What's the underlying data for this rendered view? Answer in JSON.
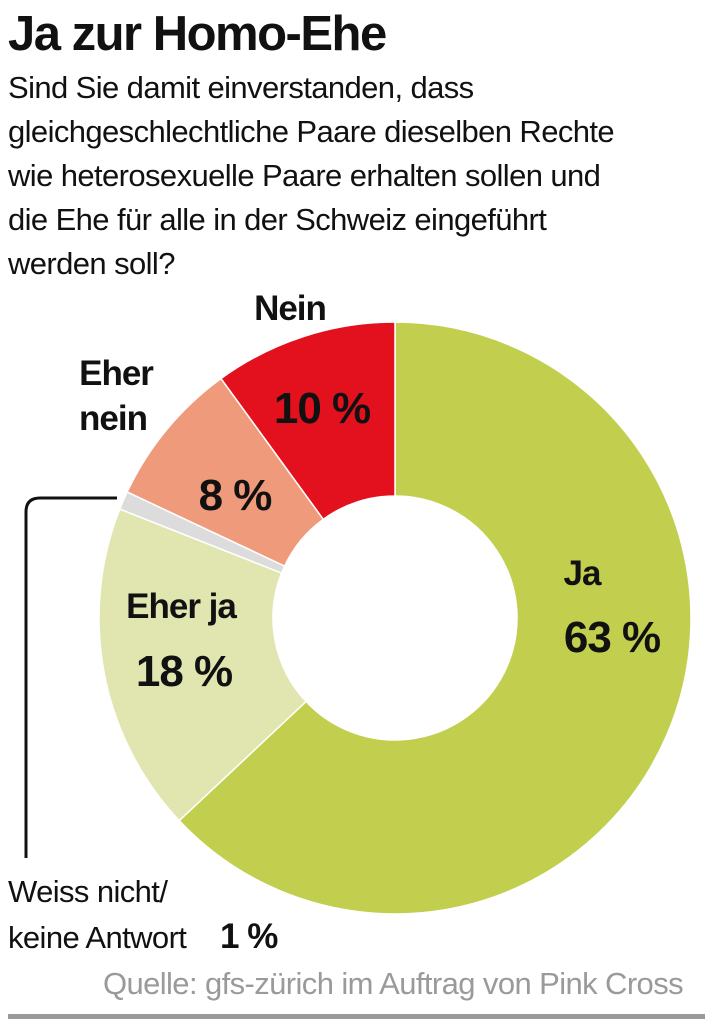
{
  "header": {
    "title": "Ja zur Homo-Ehe",
    "question_lines": [
      "Sind Sie damit einverstanden, dass",
      "gleichgeschlechtliche Paare dieselben Rechte",
      "wie heterosexuelle Paare erhalten sollen und",
      "die Ehe für alle in der Schweiz eingeführt",
      "werden soll?"
    ]
  },
  "chart_data": {
    "type": "pie",
    "variant": "donut",
    "unit": "%",
    "slices": [
      {
        "id": "ja",
        "label_lines": [
          "Ja"
        ],
        "value": 63,
        "display": "63 %",
        "color": "#c2cf4e"
      },
      {
        "id": "eher-ja",
        "label_lines": [
          "Eher ja"
        ],
        "value": 18,
        "display": "18 %",
        "color": "#e1e6b0"
      },
      {
        "id": "weiss-nicht",
        "label_lines": [
          "Weiss nicht/",
          "keine Antwort"
        ],
        "value": 1,
        "display": "1 %",
        "color": "#dcdcdc"
      },
      {
        "id": "eher-nein",
        "label_lines": [
          "Eher",
          "nein"
        ],
        "value": 8,
        "display": "8 %",
        "color": "#f09a7c"
      },
      {
        "id": "nein",
        "label_lines": [
          "Nein"
        ],
        "value": 10,
        "display": "10 %",
        "color": "#e3101e"
      }
    ]
  },
  "footer": {
    "source": "Quelle: gfs-zürich im Auftrag von Pink Cross"
  }
}
